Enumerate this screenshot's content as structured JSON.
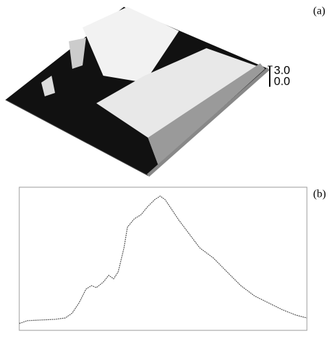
{
  "panel_a": {
    "label": "(a)",
    "scale_top": "3.0",
    "scale_bottom": "0.0"
  },
  "chart_data": {
    "type": "line",
    "label": "(b)",
    "x": [
      0,
      2.9,
      7.7,
      12.4,
      16,
      18.4,
      20.8,
      23.2,
      25.1,
      26.8,
      29.2,
      31.1,
      32.8,
      34.4,
      36.4,
      37.6,
      40,
      42.3,
      44.7,
      47.1,
      49,
      50.7,
      53.1,
      55.5,
      59.1,
      62.7,
      67.5,
      72.2,
      77,
      81.8,
      86.6,
      91.4,
      96.2,
      100
    ],
    "series": [
      {
        "color": "#555555",
        "values": [
          4.1,
          6.2,
          6.7,
          7.2,
          8.2,
          11.8,
          19.5,
          29.7,
          32.3,
          30.8,
          34.9,
          40,
          37.4,
          42.6,
          60.5,
          75.9,
          82.1,
          85.1,
          91.3,
          96.4,
          99,
          96.4,
          88.7,
          81,
          70.8,
          60.5,
          52.8,
          42.6,
          32.3,
          24.6,
          19.5,
          14.4,
          10.3,
          8.2
        ]
      }
    ],
    "xlim": [
      0,
      100
    ],
    "ylim": [
      0,
      100
    ]
  }
}
